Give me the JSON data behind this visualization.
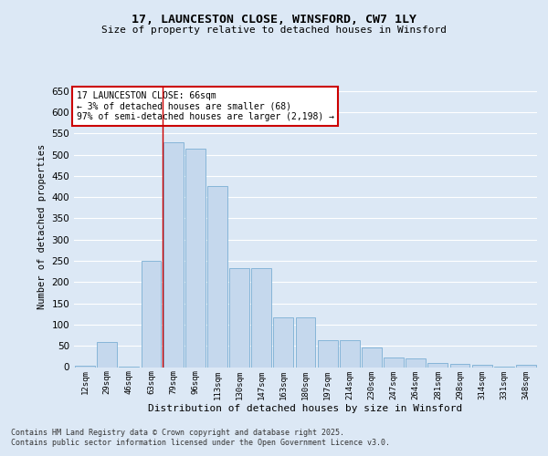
{
  "title": "17, LAUNCESTON CLOSE, WINSFORD, CW7 1LY",
  "subtitle": "Size of property relative to detached houses in Winsford",
  "xlabel": "Distribution of detached houses by size in Winsford",
  "ylabel": "Number of detached properties",
  "categories": [
    "12sqm",
    "29sqm",
    "46sqm",
    "63sqm",
    "79sqm",
    "96sqm",
    "113sqm",
    "130sqm",
    "147sqm",
    "163sqm",
    "180sqm",
    "197sqm",
    "214sqm",
    "230sqm",
    "247sqm",
    "264sqm",
    "281sqm",
    "298sqm",
    "314sqm",
    "331sqm",
    "348sqm"
  ],
  "bar_values": [
    4,
    60,
    2,
    250,
    530,
    515,
    425,
    232,
    232,
    118,
    118,
    64,
    64,
    46,
    22,
    20,
    9,
    8,
    5,
    1,
    5
  ],
  "bar_color": "#c5d8ed",
  "bar_edge_color": "#7aafd4",
  "plot_bg_color": "#dce8f5",
  "fig_bg_color": "#dce8f5",
  "grid_color": "#ffffff",
  "vline_color": "#cc0000",
  "vline_x": 3.5,
  "annotation_title": "17 LAUNCESTON CLOSE: 66sqm",
  "annotation_line1": "← 3% of detached houses are smaller (68)",
  "annotation_line2": "97% of semi-detached houses are larger (2,198) →",
  "footer_line1": "Contains HM Land Registry data © Crown copyright and database right 2025.",
  "footer_line2": "Contains public sector information licensed under the Open Government Licence v3.0.",
  "ylim": [
    0,
    660
  ],
  "yticks": [
    0,
    50,
    100,
    150,
    200,
    250,
    300,
    350,
    400,
    450,
    500,
    550,
    600,
    650
  ]
}
